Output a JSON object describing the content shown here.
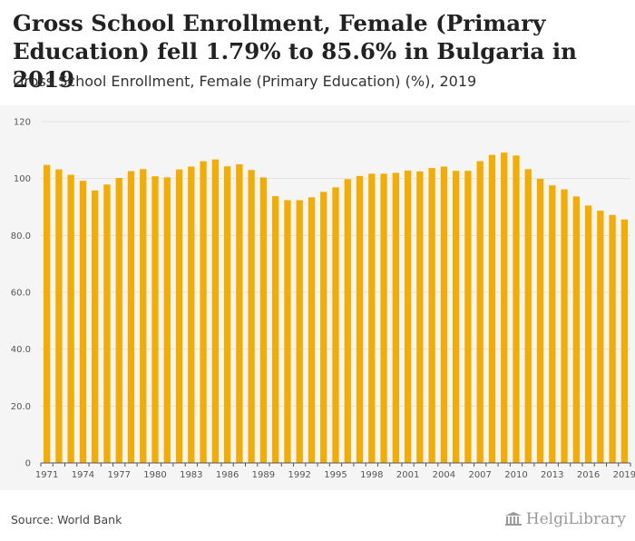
{
  "title": "Gross School Enrollment, Female (Primary Education) fell 1.79% to 85.6% in Bulgaria in 2019",
  "subtitle": "Gross School Enrollment, Female (Primary Education) (%), 2019",
  "source": "Source: World Bank",
  "logo_text": "HelgiLibrary",
  "colors": {
    "bar": "#f5ac00",
    "grid": "#e2e2e2",
    "axis": "#555555",
    "background": "#f5f5f5"
  },
  "chart_data": {
    "type": "bar",
    "title": "Gross School Enrollment, Female (Primary Education) (%), 2019",
    "xlabel": "",
    "ylabel": "",
    "ylim": [
      0,
      120
    ],
    "yticks": [
      "0",
      "20.0",
      "40.0",
      "60.0",
      "80.0",
      "100",
      "120"
    ],
    "ytick_values": [
      0,
      20,
      40,
      60,
      80,
      100,
      120
    ],
    "xtick_labels": [
      "1971",
      "1974",
      "1977",
      "1980",
      "1983",
      "1986",
      "1989",
      "1992",
      "1995",
      "1998",
      "2001",
      "2004",
      "2007",
      "2010",
      "2013",
      "2016",
      "2019"
    ],
    "categories": [
      "1971",
      "1972",
      "1973",
      "1974",
      "1975",
      "1976",
      "1977",
      "1978",
      "1979",
      "1980",
      "1981",
      "1982",
      "1983",
      "1984",
      "1985",
      "1986",
      "1987",
      "1988",
      "1989",
      "1990",
      "1991",
      "1992",
      "1993",
      "1994",
      "1995",
      "1996",
      "1997",
      "1998",
      "1999",
      "2000",
      "2001",
      "2002",
      "2003",
      "2004",
      "2005",
      "2006",
      "2007",
      "2008",
      "2009",
      "2010",
      "2011",
      "2012",
      "2013",
      "2014",
      "2015",
      "2016",
      "2017",
      "2018",
      "2019"
    ],
    "values": [
      104.8,
      103.2,
      101.3,
      99.2,
      95.8,
      97.9,
      100.2,
      102.6,
      103.3,
      100.8,
      100.4,
      103.2,
      104.2,
      106.1,
      106.7,
      104.3,
      105.0,
      103.0,
      100.4,
      93.8,
      92.4,
      92.4,
      93.4,
      95.3,
      96.9,
      99.8,
      100.9,
      101.7,
      101.7,
      102.0,
      102.8,
      102.5,
      103.7,
      104.2,
      102.7,
      102.7,
      106.1,
      108.3,
      109.1,
      108.1,
      103.3,
      99.9,
      97.6,
      96.2,
      93.7,
      90.5,
      88.7,
      87.2,
      85.6
    ]
  }
}
